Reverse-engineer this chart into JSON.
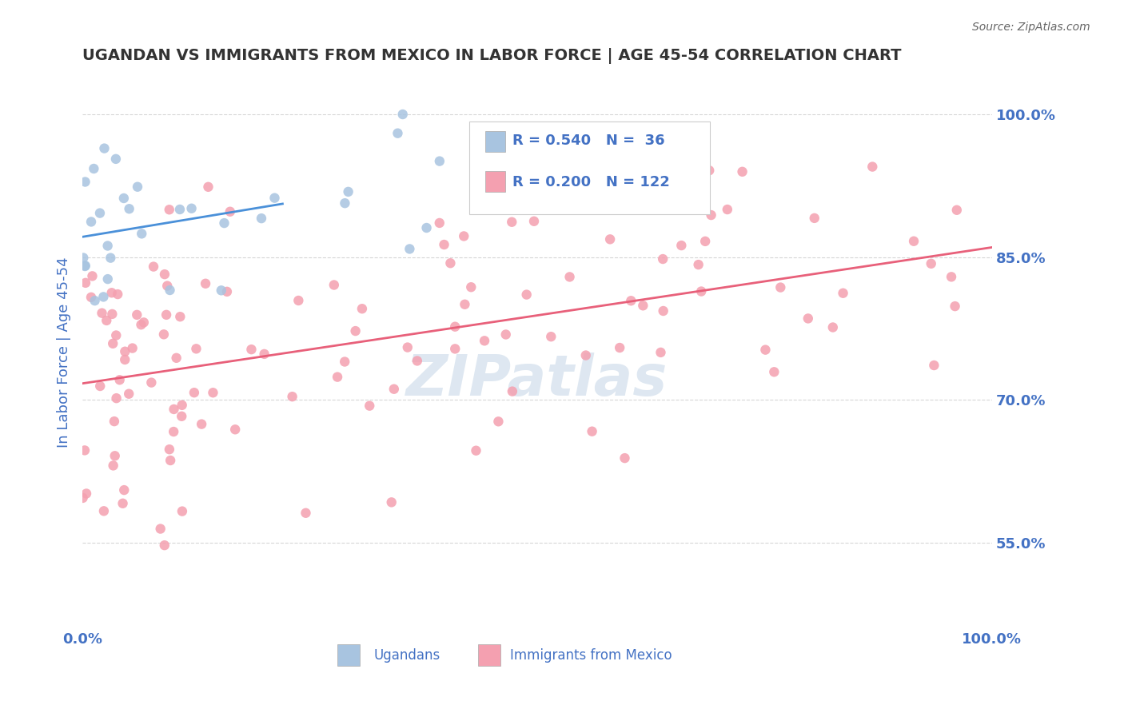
{
  "title": "UGANDAN VS IMMIGRANTS FROM MEXICO IN LABOR FORCE | AGE 45-54 CORRELATION CHART",
  "source": "Source: ZipAtlas.com",
  "ylabel": "In Labor Force | Age 45-54",
  "xlim": [
    0.0,
    1.0
  ],
  "ylim": [
    0.46,
    1.04
  ],
  "yticks": [
    0.55,
    0.7,
    0.85,
    1.0
  ],
  "ytick_labels": [
    "55.0%",
    "70.0%",
    "85.0%",
    "100.0%"
  ],
  "xticks": [
    0.0,
    1.0
  ],
  "xtick_labels": [
    "0.0%",
    "100.0%"
  ],
  "legend_R1": "0.540",
  "legend_N1": "36",
  "legend_R2": "0.200",
  "legend_N2": "122",
  "color_ugandan": "#a8c4e0",
  "color_mexico": "#f4a0b0",
  "line_color_ugandan": "#4a90d9",
  "line_color_mexico": "#e8607a",
  "watermark": "ZIPatlas",
  "watermark_color": "#c8d8e8",
  "background_color": "#ffffff",
  "grid_color": "#cccccc",
  "title_color": "#333333",
  "axis_label_color": "#4472c4",
  "tick_label_color": "#4472c4"
}
